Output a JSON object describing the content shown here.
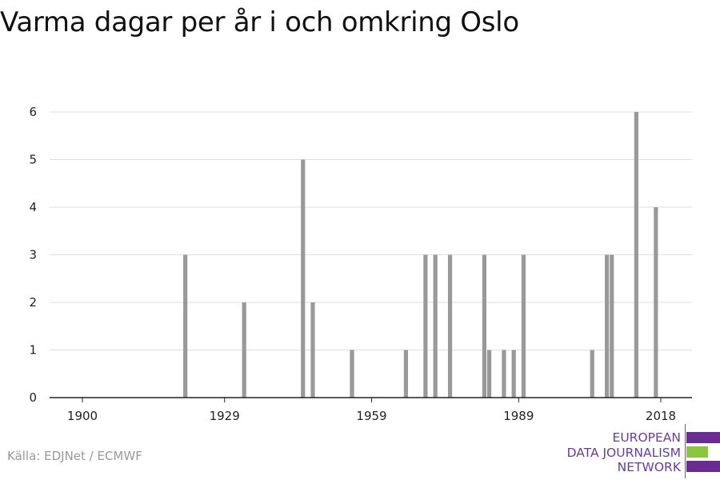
{
  "title": "Varma dagar per år i och omkring Oslo",
  "source": "Källa: EDJNet / ECMWF",
  "logo": {
    "lines": [
      "EUROPEAN",
      "DATA JOURNALISM",
      "NETWORK"
    ],
    "colors": {
      "purple": "#6b2c91",
      "green": "#8cc63f",
      "text": "#6b3c9a"
    }
  },
  "colors": {
    "bar": "#999999",
    "grid": "#dddddd",
    "axis": "#222222"
  },
  "chart_data": {
    "type": "bar",
    "title": "Varma dagar per år i och omkring Oslo",
    "xlabel": "",
    "ylabel": "",
    "xlim": [
      1900,
      2018
    ],
    "ylim": [
      0,
      6
    ],
    "xticks": [
      1900,
      1929,
      1959,
      1989,
      2018
    ],
    "yticks": [
      0,
      1,
      2,
      3,
      4,
      5,
      6
    ],
    "grid": true,
    "x": [
      1921,
      1933,
      1945,
      1947,
      1955,
      1966,
      1970,
      1972,
      1975,
      1982,
      1983,
      1986,
      1988,
      1990,
      2004,
      2007,
      2008,
      2013,
      2017
    ],
    "values": [
      3,
      2,
      5,
      2,
      1,
      1,
      3,
      3,
      3,
      3,
      1,
      1,
      1,
      3,
      1,
      3,
      3,
      6,
      4
    ]
  }
}
